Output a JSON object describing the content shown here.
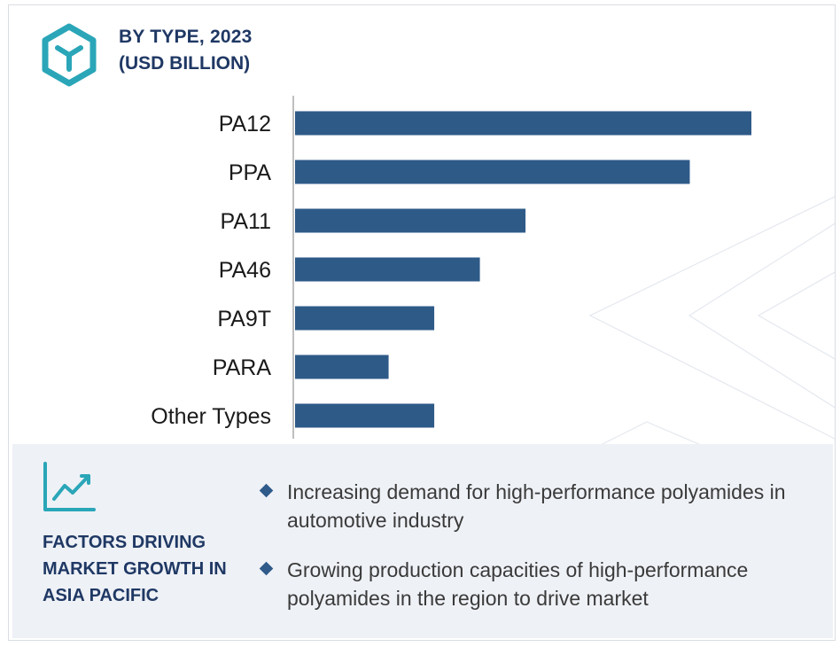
{
  "header": {
    "title": "BY TYPE, 2023",
    "subtitle": "(USD BILLION)",
    "logo_icon": "hexagon-y-logo-icon"
  },
  "colors": {
    "bar": "#2e5a88",
    "accent": "#2aa6b8",
    "heading": "#1f3864",
    "panel_bg": "#eef1f6"
  },
  "chart_data": {
    "type": "bar",
    "orientation": "horizontal",
    "categories": [
      "PA12",
      "PPA",
      "PA11",
      "PA46",
      "PA9T",
      "PARA",
      "Other Types"
    ],
    "values": [
      10,
      8.65,
      5.05,
      4.05,
      3.05,
      2.05,
      3.05
    ],
    "xlim": [
      0,
      10
    ],
    "title": "",
    "xlabel": "",
    "ylabel": "",
    "grid": false,
    "legend": "none"
  },
  "factors": {
    "icon": "line-chart-trend-icon",
    "heading": "FACTORS DRIVING MARKET GROWTH IN ASIA PACIFIC",
    "items": [
      "Increasing demand for high-performance polyamides in automotive industry",
      "Growing production capacities of high-performance polyamides in the region to drive market"
    ]
  }
}
